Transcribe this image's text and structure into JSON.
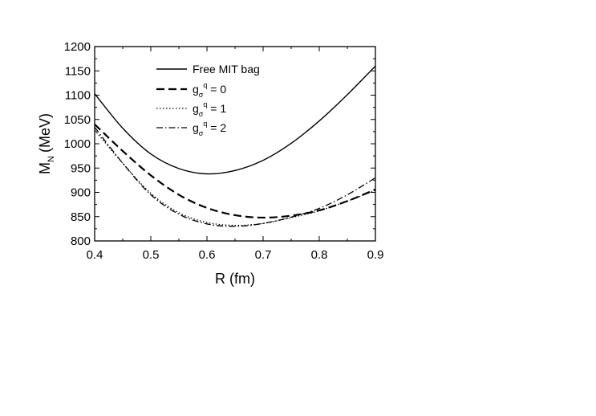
{
  "chart_data": {
    "type": "line",
    "xlabel": "R (fm)",
    "ylabel": "M",
    "ylabel_sub": "N",
    "ylabel_unit": "(MeV)",
    "xlim": [
      0.4,
      0.9
    ],
    "ylim": [
      800,
      1200
    ],
    "x_ticks": [
      0.4,
      0.5,
      0.6,
      0.7,
      0.8,
      0.9
    ],
    "x_tick_labels": [
      "0.4",
      "0.5",
      "0.6",
      "0.7",
      "0.8",
      "0.9"
    ],
    "y_ticks": [
      800,
      850,
      900,
      950,
      1000,
      1050,
      1100,
      1150,
      1200
    ],
    "y_tick_labels": [
      "800",
      "850",
      "900",
      "950",
      "1000",
      "1050",
      "1100",
      "1150",
      "1200"
    ],
    "legend_position": "top-left",
    "grid": false,
    "series": [
      {
        "name": "Free MIT bag",
        "dash": "solid",
        "x": [
          0.4,
          0.45,
          0.5,
          0.55,
          0.6,
          0.65,
          0.7,
          0.75,
          0.8,
          0.85,
          0.9
        ],
        "y": [
          1103,
          1032,
          979,
          949,
          938,
          945,
          966,
          1001,
          1047,
          1101,
          1160
        ]
      },
      {
        "name": "g_σ^q = 0",
        "name_base": "g",
        "name_sub": "σ",
        "name_sup": "q",
        "name_value": " = 0",
        "dash": "dashed",
        "x": [
          0.4,
          0.45,
          0.5,
          0.55,
          0.6,
          0.65,
          0.7,
          0.75,
          0.8,
          0.85,
          0.9
        ],
        "y": [
          1040,
          985,
          935,
          895,
          868,
          853,
          848,
          852,
          863,
          882,
          906
        ]
      },
      {
        "name": "g_σ^q = 1",
        "name_base": "g",
        "name_sub": "σ",
        "name_sup": "q",
        "name_value": " = 1",
        "dash": "dotted",
        "x": [
          0.4,
          0.45,
          0.5,
          0.55,
          0.6,
          0.65,
          0.7,
          0.75,
          0.8,
          0.85,
          0.9
        ],
        "y": [
          1028,
          960,
          898,
          858,
          838,
          832,
          836,
          848,
          862,
          882,
          904
        ]
      },
      {
        "name": "g_σ^q = 2",
        "name_base": "g",
        "name_sub": "σ",
        "name_sup": "q",
        "name_value": " = 2",
        "dash": "dashdot",
        "x": [
          0.4,
          0.45,
          0.5,
          0.55,
          0.6,
          0.65,
          0.7,
          0.75,
          0.8,
          0.85,
          0.9
        ],
        "y": [
          1034,
          960,
          895,
          855,
          835,
          830,
          836,
          849,
          867,
          895,
          930
        ]
      }
    ]
  }
}
